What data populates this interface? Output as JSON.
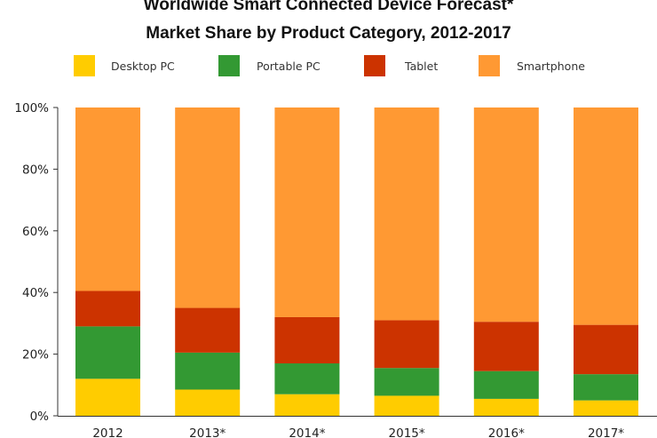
{
  "chart_data": {
    "type": "bar",
    "stacked": true,
    "title": "Worldwide Smart Connected Device Forecast*",
    "subtitle": "Market Share by Product Category, 2012-2017",
    "categories": [
      "2012",
      "2013*",
      "2014*",
      "2015*",
      "2016*",
      "2017*"
    ],
    "series": [
      {
        "name": "Desktop PC",
        "color": "#FFCC00",
        "values": [
          12,
          8.5,
          7,
          6.5,
          5.5,
          5
        ]
      },
      {
        "name": "Portable PC",
        "color": "#339933",
        "values": [
          17,
          12,
          10,
          9,
          9,
          8.5
        ]
      },
      {
        "name": "Tablet",
        "color": "#CC3300",
        "values": [
          11.5,
          14.5,
          15,
          15.5,
          16,
          16
        ]
      },
      {
        "name": "Smartphone",
        "color": "#FF9933",
        "values": [
          59.5,
          65,
          68,
          69,
          69.5,
          70.5
        ]
      }
    ],
    "ylim": [
      0,
      100
    ],
    "yticks": [
      "0%",
      "20%",
      "40%",
      "60%",
      "80%",
      "100%"
    ],
    "xlabel": "",
    "ylabel": "",
    "legend_position": "top",
    "grid": false
  }
}
